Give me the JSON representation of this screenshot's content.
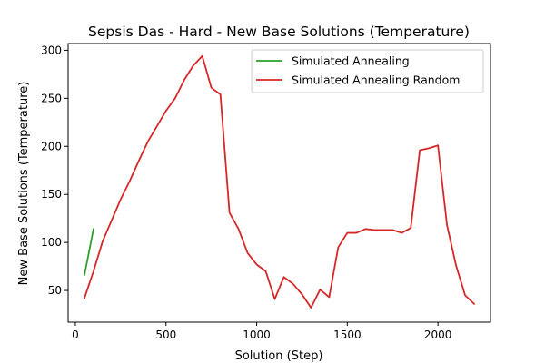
{
  "chart_data": {
    "type": "line",
    "title": "Sepsis Das - Hard - New Base Solutions (Temperature)",
    "xlabel": "Solution (Step)",
    "ylabel": "New Base Solutions (Temperature)",
    "xlim": [
      -40,
      2290
    ],
    "ylim": [
      17,
      307
    ],
    "xticks": [
      0,
      500,
      1000,
      1500,
      2000
    ],
    "yticks": [
      50,
      100,
      150,
      200,
      250,
      300
    ],
    "grid": false,
    "legend_position": "top-right",
    "series": [
      {
        "name": "Simulated Annealing",
        "color": "#2ca02c",
        "x": [
          50,
          100
        ],
        "y": [
          66,
          114
        ]
      },
      {
        "name": "Simulated Annealing Random",
        "color": "#d62728",
        "x": [
          50,
          100,
          150,
          200,
          250,
          300,
          350,
          400,
          450,
          500,
          550,
          600,
          650,
          700,
          750,
          800,
          850,
          900,
          950,
          1000,
          1050,
          1100,
          1150,
          1200,
          1250,
          1300,
          1350,
          1400,
          1450,
          1500,
          1550,
          1600,
          1650,
          1700,
          1750,
          1800,
          1850,
          1900,
          1950,
          2000,
          2050,
          2100,
          2150,
          2200
        ],
        "y": [
          42,
          70,
          101,
          123,
          145,
          164,
          185,
          205,
          221,
          237,
          250,
          269,
          284,
          294,
          261,
          254,
          131,
          114,
          89,
          77,
          70,
          41,
          64,
          57,
          46,
          32,
          51,
          43,
          95,
          110,
          110,
          114,
          113,
          113,
          113,
          110,
          115,
          196,
          198,
          201,
          118,
          76,
          45,
          36
        ]
      }
    ]
  }
}
